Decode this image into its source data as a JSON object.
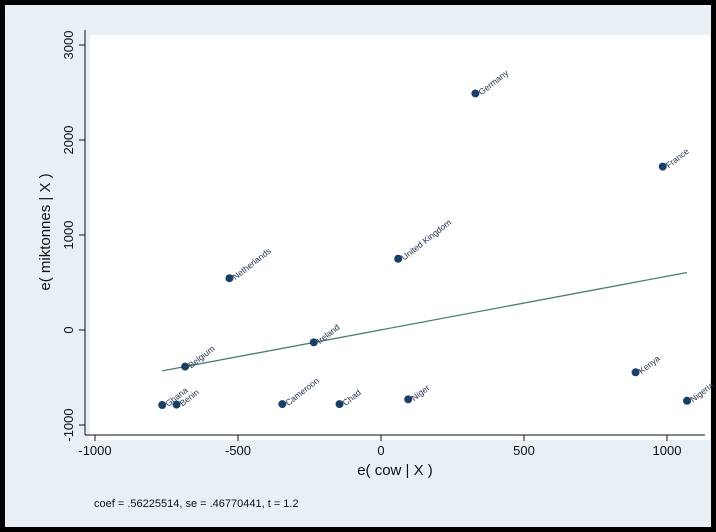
{
  "chart_data": {
    "type": "scatter",
    "xlabel": "e( cow | X )",
    "ylabel": "e( miktonnes | X )",
    "xlim": [
      -1000,
      1100
    ],
    "ylim": [
      -1050,
      3100
    ],
    "xticks": [
      -1000,
      -500,
      0,
      500,
      1000
    ],
    "xtick_labels": [
      "-1000",
      "-500",
      "0",
      "500",
      "1000"
    ],
    "yticks": [
      -1000,
      0,
      1000,
      2000,
      3000
    ],
    "ytick_labels": [
      "-1000",
      "0",
      "1000",
      "2000",
      "3000"
    ],
    "grid": false,
    "marker_color": "#1a3f66",
    "fit_color": "#4a7f6e",
    "points": [
      {
        "label": "Germany",
        "x": 330,
        "y": 2490
      },
      {
        "label": "France",
        "x": 985,
        "y": 1720
      },
      {
        "label": "United Kingdom",
        "x": 60,
        "y": 750
      },
      {
        "label": "Netherlands",
        "x": -530,
        "y": 545
      },
      {
        "label": "Ireland",
        "x": -235,
        "y": -130
      },
      {
        "label": "Belgium",
        "x": -685,
        "y": -385
      },
      {
        "label": "Ghana",
        "x": -765,
        "y": -790
      },
      {
        "label": "Benin",
        "x": -715,
        "y": -785
      },
      {
        "label": "Cameroon",
        "x": -345,
        "y": -780
      },
      {
        "label": "Chad",
        "x": -145,
        "y": -780
      },
      {
        "label": "Niger",
        "x": 95,
        "y": -730
      },
      {
        "label": "Kenya",
        "x": 890,
        "y": -445
      },
      {
        "label": "Nigeria",
        "x": 1070,
        "y": -745
      }
    ],
    "fit_line": {
      "x": [
        -765,
        1070
      ],
      "y": [
        -430,
        605
      ]
    },
    "note": "coef = .56225514, se = .46770441, t = 1.2"
  }
}
